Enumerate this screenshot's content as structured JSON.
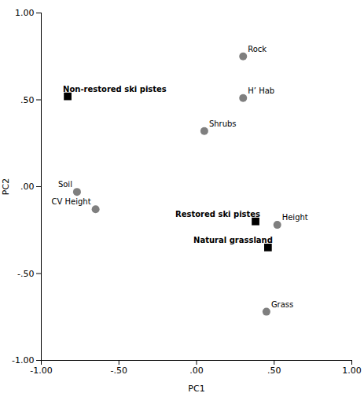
{
  "chart_data": {
    "type": "scatter",
    "xlabel": "PC1",
    "ylabel": "PC2",
    "xlim": [
      -1.0,
      1.0
    ],
    "ylim": [
      -1.0,
      1.0
    ],
    "xticks": [
      {
        "value": -1.0,
        "label": "-1.00"
      },
      {
        "value": -0.5,
        "label": "-.50"
      },
      {
        "value": 0.0,
        "label": ".00"
      },
      {
        "value": 0.5,
        "label": ".50"
      },
      {
        "value": 1.0,
        "label": "1.00"
      }
    ],
    "yticks": [
      {
        "value": -1.0,
        "label": "-1.00"
      },
      {
        "value": -0.5,
        "label": "-.50"
      },
      {
        "value": 0.0,
        "label": ".00"
      },
      {
        "value": 0.5,
        "label": ".50"
      },
      {
        "value": 1.0,
        "label": "1.00"
      }
    ],
    "grid": false,
    "series": [
      {
        "marker": "circle",
        "color": "#7f7f7f",
        "x": [
          0.3,
          0.3,
          0.05,
          -0.77,
          -0.65,
          0.52,
          0.45
        ],
        "values": [
          0.75,
          0.51,
          0.32,
          -0.03,
          -0.13,
          -0.22,
          -0.72
        ],
        "labels": [
          "Rock",
          "H’ Hab",
          "Shrubs",
          "Soil",
          "CV Height",
          "Height",
          "Grass"
        ]
      },
      {
        "marker": "square",
        "color": "#000000",
        "x": [
          -0.83,
          0.38,
          0.46
        ],
        "values": [
          0.52,
          -0.2,
          -0.35
        ],
        "labels": [
          "Non-restored ski pistes",
          "Restored ski pistes",
          "Natural grassland"
        ]
      }
    ]
  }
}
